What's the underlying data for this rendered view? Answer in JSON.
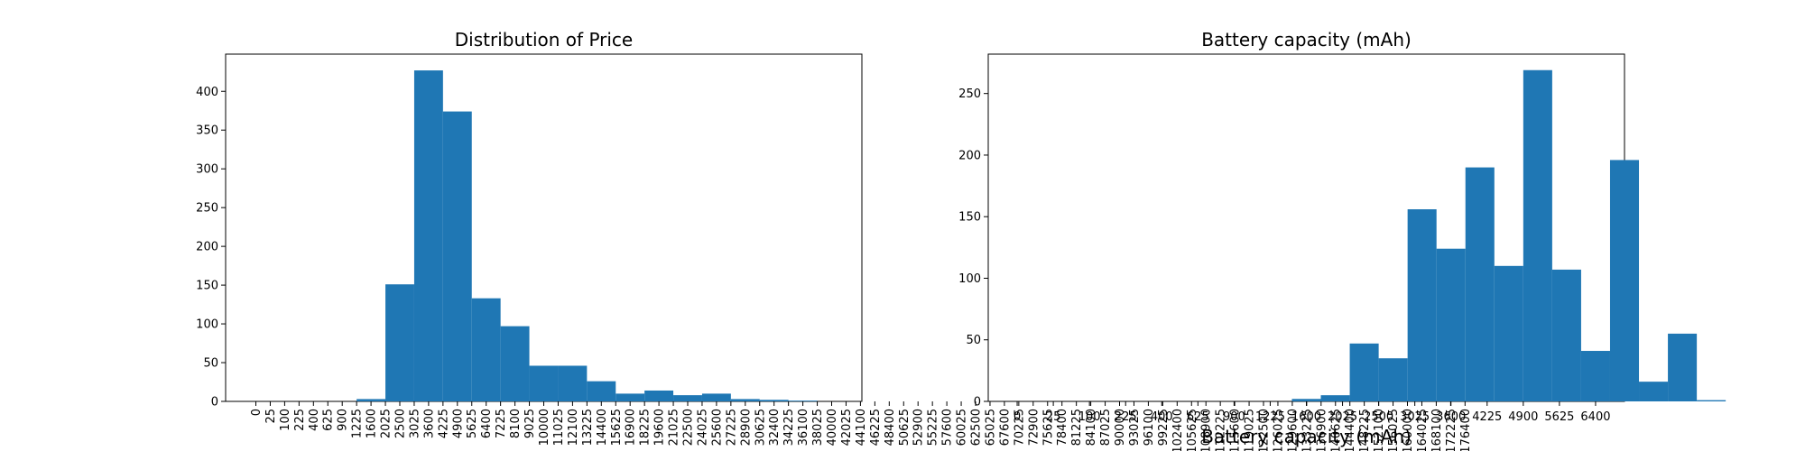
{
  "chart_data": [
    {
      "type": "bar",
      "title": "Distribution of Price",
      "xlabel": "",
      "ylabel": "",
      "x_tick_labels": [
        "0",
        "25",
        "100",
        "225",
        "400",
        "625",
        "900",
        "1225",
        "1600",
        "2025",
        "2500",
        "3025",
        "3600",
        "4225",
        "4900",
        "5625",
        "6400",
        "7225",
        "8100",
        "9025",
        "10000",
        "11025",
        "12100",
        "13225",
        "14400",
        "15625",
        "16900",
        "18225",
        "19600",
        "21025",
        "22500",
        "24025",
        "25600",
        "27225",
        "28900",
        "30625",
        "32400",
        "34225",
        "36100",
        "38025",
        "40000",
        "42025",
        "44100",
        "46225",
        "48400",
        "50625",
        "52900",
        "55225",
        "57600",
        "60025",
        "62500",
        "65025",
        "67600",
        "70225",
        "72900",
        "75625",
        "78400",
        "81225",
        "84100",
        "87025",
        "90000",
        "93025",
        "96100",
        "99225",
        "102400",
        "105625",
        "108900",
        "112225",
        "115600",
        "119025",
        "122500",
        "126025",
        "129600",
        "133225",
        "136900",
        "140625",
        "144400",
        "148225",
        "152100",
        "156025",
        "160000",
        "164025",
        "168100",
        "172225",
        "176400"
      ],
      "bins": [
        {
          "from": 7,
          "to": 9,
          "value": 3
        },
        {
          "from": 9,
          "to": 11,
          "value": 151
        },
        {
          "from": 11,
          "to": 13,
          "value": 427
        },
        {
          "from": 13,
          "to": 15,
          "value": 374
        },
        {
          "from": 15,
          "to": 17,
          "value": 133
        },
        {
          "from": 17,
          "to": 19,
          "value": 97
        },
        {
          "from": 19,
          "to": 21,
          "value": 46
        },
        {
          "from": 21,
          "to": 23,
          "value": 46
        },
        {
          "from": 23,
          "to": 25,
          "value": 26
        },
        {
          "from": 25,
          "to": 27,
          "value": 10
        },
        {
          "from": 27,
          "to": 29,
          "value": 14
        },
        {
          "from": 29,
          "to": 31,
          "value": 8
        },
        {
          "from": 31,
          "to": 33,
          "value": 10
        },
        {
          "from": 33,
          "to": 35,
          "value": 3
        },
        {
          "from": 35,
          "to": 37,
          "value": 2
        },
        {
          "from": 37,
          "to": 39,
          "value": 1
        }
      ],
      "x_domain": [
        -2.1,
        42.1
      ],
      "y_ticks": [
        0,
        50,
        100,
        150,
        200,
        250,
        300,
        350,
        400
      ],
      "ylim": [
        0,
        448
      ],
      "bar_color": "#1f77b4"
    },
    {
      "type": "bar",
      "title": "Battery capacity (mAh)",
      "xlabel": "Battery capacity (mAh)",
      "ylabel": "",
      "x_tick_labels": [
        "0",
        "25",
        "100",
        "225",
        "400",
        "625",
        "900",
        "1225",
        "1600",
        "2025",
        "2500",
        "3025",
        "3600",
        "4225",
        "4900",
        "5625",
        "6400"
      ],
      "bins": [
        {
          "from": 7.6,
          "to": 8.4,
          "value": 2
        },
        {
          "from": 8.4,
          "to": 9.2,
          "value": 5
        },
        {
          "from": 9.2,
          "to": 10.0,
          "value": 47
        },
        {
          "from": 10.0,
          "to": 10.8,
          "value": 35
        },
        {
          "from": 10.8,
          "to": 11.6,
          "value": 156
        },
        {
          "from": 11.6,
          "to": 12.4,
          "value": 124
        },
        {
          "from": 12.4,
          "to": 13.2,
          "value": 190
        },
        {
          "from": 13.2,
          "to": 14.0,
          "value": 110
        },
        {
          "from": 14.0,
          "to": 14.8,
          "value": 269
        },
        {
          "from": 14.8,
          "to": 15.6,
          "value": 107
        },
        {
          "from": 15.6,
          "to": 16.4,
          "value": 41
        },
        {
          "from": 16.4,
          "to": 17.2,
          "value": 196
        },
        {
          "from": 17.2,
          "to": 18.0,
          "value": 16
        },
        {
          "from": 18.0,
          "to": 18.8,
          "value": 55
        },
        {
          "from": 18.8,
          "to": 19.6,
          "value": 1
        }
      ],
      "x_domain": [
        -0.8,
        16.8
      ],
      "y_ticks": [
        0,
        50,
        100,
        150,
        200,
        250
      ],
      "ylim": [
        0,
        282
      ],
      "bar_color": "#1f77b4"
    }
  ]
}
